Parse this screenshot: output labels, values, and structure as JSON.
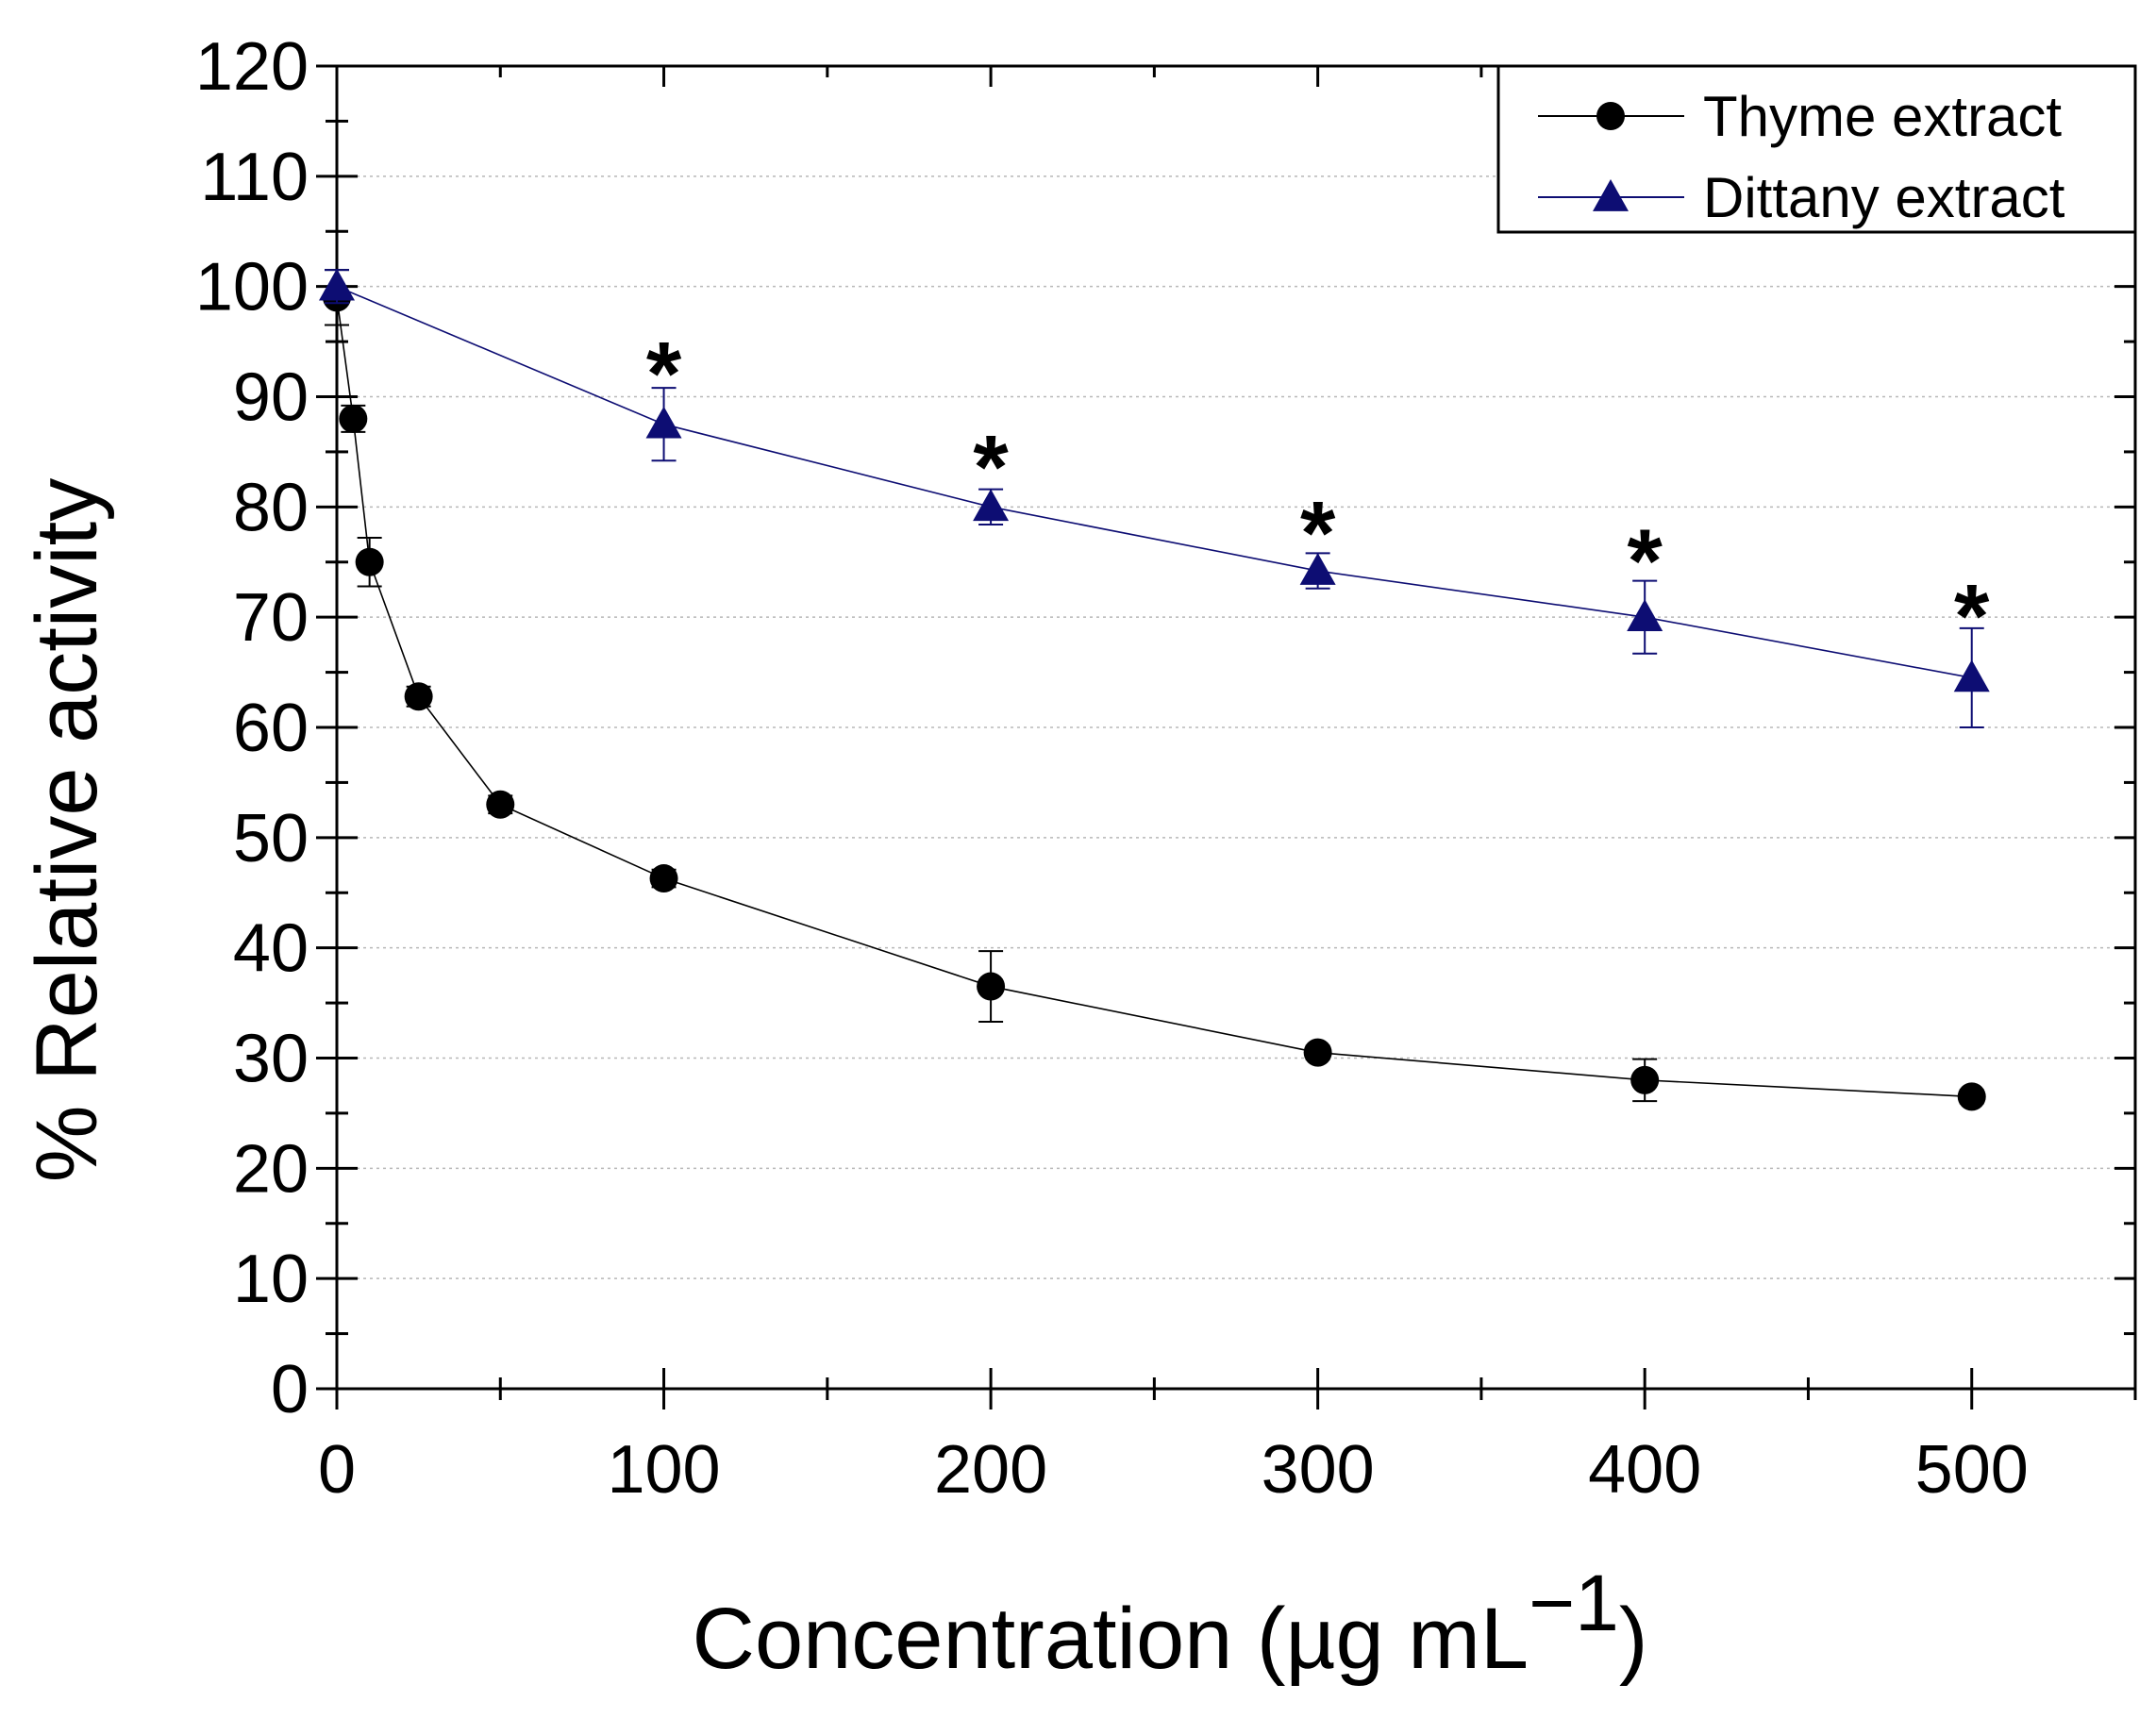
{
  "chart_data": {
    "type": "line",
    "xlabel": "Concentration (µg mL",
    "xlabel_superscript": "−1",
    "xlabel_close": ")",
    "ylabel": "% Relative activity",
    "xlim": [
      0,
      550
    ],
    "ylim": [
      0,
      120
    ],
    "xticks": [
      0,
      100,
      200,
      300,
      400,
      500
    ],
    "yticks": [
      0,
      10,
      20,
      30,
      40,
      50,
      60,
      70,
      80,
      90,
      100,
      110,
      120
    ],
    "grid": "horizontal dotted",
    "legend_position": "top-right",
    "series": [
      {
        "name": "Thyme extract",
        "marker": "circle",
        "color": "#000000",
        "x": [
          0,
          5,
          10,
          25,
          50,
          100,
          200,
          300,
          400,
          500
        ],
        "y": [
          99,
          88,
          75,
          62.8,
          53,
          46.3,
          36.5,
          30.5,
          28,
          26.5
        ],
        "err": [
          2.5,
          1.2,
          2.2,
          0.9,
          0.8,
          0.8,
          3.2,
          0.6,
          1.9,
          0.6
        ]
      },
      {
        "name": "Dittany extract",
        "marker": "triangle",
        "color": "#0d0d73",
        "x": [
          0,
          100,
          200,
          300,
          400,
          500
        ],
        "y": [
          100,
          87.5,
          80,
          74.2,
          70,
          64.5
        ],
        "err": [
          1.5,
          3.3,
          1.6,
          1.6,
          3.3,
          4.5
        ]
      }
    ],
    "annotations": [
      {
        "text": "*",
        "x": 100,
        "y": 94
      },
      {
        "text": "*",
        "x": 200,
        "y": 85.5
      },
      {
        "text": "*",
        "x": 300,
        "y": 79.5
      },
      {
        "text": "*",
        "x": 400,
        "y": 77
      },
      {
        "text": "*",
        "x": 500,
        "y": 72
      }
    ]
  }
}
